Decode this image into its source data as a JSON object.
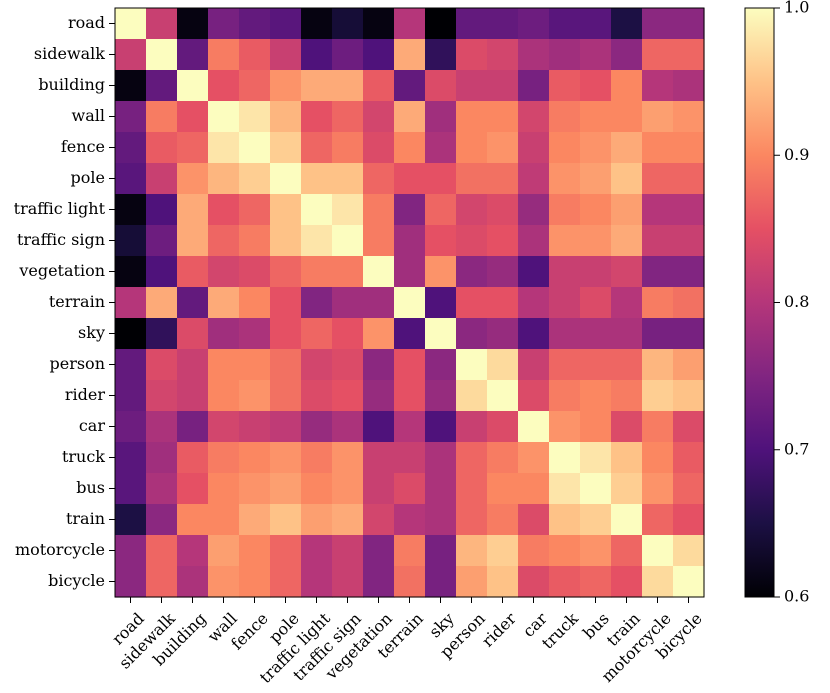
{
  "chart_data": {
    "type": "heatmap",
    "title": "",
    "xlabel": "",
    "ylabel": "",
    "classes": [
      "road",
      "sidewalk",
      "building",
      "wall",
      "fence",
      "pole",
      "traffic light",
      "traffic sign",
      "vegetation",
      "terrain",
      "sky",
      "person",
      "rider",
      "car",
      "truck",
      "bus",
      "train",
      "motorcycle",
      "bicycle"
    ],
    "values": [
      [
        1.0,
        0.82,
        0.61,
        0.74,
        0.72,
        0.71,
        0.61,
        0.64,
        0.61,
        0.8,
        0.6,
        0.72,
        0.72,
        0.73,
        0.71,
        0.71,
        0.65,
        0.76,
        0.76
      ],
      [
        0.82,
        1.0,
        0.72,
        0.89,
        0.86,
        0.82,
        0.7,
        0.73,
        0.7,
        0.93,
        0.67,
        0.84,
        0.83,
        0.79,
        0.78,
        0.79,
        0.76,
        0.87,
        0.87
      ],
      [
        0.61,
        0.72,
        1.0,
        0.85,
        0.87,
        0.91,
        0.93,
        0.93,
        0.86,
        0.72,
        0.84,
        0.82,
        0.82,
        0.74,
        0.86,
        0.85,
        0.9,
        0.8,
        0.79
      ],
      [
        0.74,
        0.89,
        0.85,
        1.0,
        0.98,
        0.94,
        0.85,
        0.87,
        0.83,
        0.93,
        0.78,
        0.9,
        0.9,
        0.83,
        0.89,
        0.9,
        0.9,
        0.92,
        0.91
      ],
      [
        0.72,
        0.86,
        0.87,
        0.98,
        1.0,
        0.96,
        0.87,
        0.89,
        0.84,
        0.9,
        0.79,
        0.9,
        0.91,
        0.82,
        0.9,
        0.91,
        0.93,
        0.9,
        0.9
      ],
      [
        0.71,
        0.82,
        0.91,
        0.94,
        0.96,
        1.0,
        0.95,
        0.95,
        0.87,
        0.85,
        0.85,
        0.88,
        0.88,
        0.81,
        0.91,
        0.92,
        0.95,
        0.87,
        0.87
      ],
      [
        0.61,
        0.7,
        0.93,
        0.85,
        0.87,
        0.95,
        1.0,
        0.98,
        0.89,
        0.75,
        0.87,
        0.83,
        0.84,
        0.77,
        0.89,
        0.9,
        0.92,
        0.8,
        0.8
      ],
      [
        0.64,
        0.73,
        0.93,
        0.87,
        0.89,
        0.95,
        0.98,
        1.0,
        0.89,
        0.78,
        0.85,
        0.84,
        0.85,
        0.79,
        0.91,
        0.91,
        0.93,
        0.82,
        0.82
      ],
      [
        0.61,
        0.7,
        0.86,
        0.83,
        0.84,
        0.87,
        0.89,
        0.89,
        1.0,
        0.78,
        0.91,
        0.76,
        0.77,
        0.7,
        0.82,
        0.82,
        0.83,
        0.75,
        0.75
      ],
      [
        0.8,
        0.93,
        0.72,
        0.93,
        0.9,
        0.85,
        0.75,
        0.78,
        0.78,
        1.0,
        0.7,
        0.85,
        0.85,
        0.8,
        0.82,
        0.84,
        0.8,
        0.89,
        0.88
      ],
      [
        0.6,
        0.67,
        0.84,
        0.78,
        0.79,
        0.85,
        0.87,
        0.85,
        0.91,
        0.7,
        1.0,
        0.76,
        0.77,
        0.7,
        0.79,
        0.79,
        0.79,
        0.74,
        0.74
      ],
      [
        0.72,
        0.84,
        0.82,
        0.9,
        0.9,
        0.88,
        0.83,
        0.84,
        0.76,
        0.85,
        0.76,
        1.0,
        0.97,
        0.82,
        0.87,
        0.87,
        0.87,
        0.94,
        0.92
      ],
      [
        0.72,
        0.83,
        0.82,
        0.9,
        0.91,
        0.88,
        0.84,
        0.85,
        0.77,
        0.85,
        0.77,
        0.97,
        1.0,
        0.84,
        0.89,
        0.9,
        0.89,
        0.96,
        0.95
      ],
      [
        0.73,
        0.79,
        0.74,
        0.83,
        0.82,
        0.81,
        0.77,
        0.79,
        0.7,
        0.8,
        0.7,
        0.82,
        0.84,
        1.0,
        0.91,
        0.9,
        0.84,
        0.89,
        0.84
      ],
      [
        0.71,
        0.78,
        0.86,
        0.89,
        0.9,
        0.91,
        0.89,
        0.91,
        0.82,
        0.82,
        0.79,
        0.87,
        0.89,
        0.91,
        1.0,
        0.98,
        0.95,
        0.9,
        0.86
      ],
      [
        0.71,
        0.79,
        0.85,
        0.9,
        0.91,
        0.92,
        0.9,
        0.91,
        0.82,
        0.84,
        0.79,
        0.87,
        0.9,
        0.9,
        0.98,
        1.0,
        0.96,
        0.91,
        0.87
      ],
      [
        0.65,
        0.76,
        0.9,
        0.9,
        0.93,
        0.95,
        0.92,
        0.93,
        0.83,
        0.8,
        0.79,
        0.87,
        0.89,
        0.84,
        0.95,
        0.96,
        1.0,
        0.87,
        0.85
      ],
      [
        0.76,
        0.87,
        0.8,
        0.92,
        0.9,
        0.87,
        0.8,
        0.82,
        0.75,
        0.89,
        0.74,
        0.94,
        0.96,
        0.89,
        0.9,
        0.91,
        0.87,
        1.0,
        0.97
      ],
      [
        0.76,
        0.87,
        0.79,
        0.91,
        0.9,
        0.87,
        0.8,
        0.82,
        0.75,
        0.88,
        0.74,
        0.92,
        0.95,
        0.84,
        0.86,
        0.87,
        0.85,
        0.97,
        1.0
      ]
    ],
    "colormap": "magma",
    "vmin": 0.6,
    "vmax": 1.0,
    "colorbar_ticks": [
      "0.6",
      "0.7",
      "0.8",
      "0.9",
      "1.0"
    ],
    "grid": false
  }
}
